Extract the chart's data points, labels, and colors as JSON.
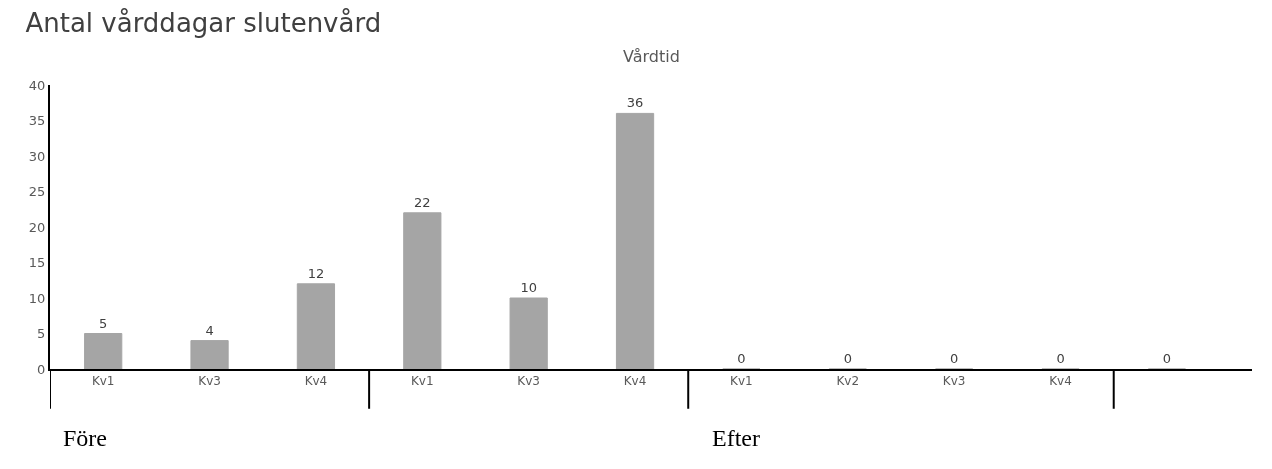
{
  "chart_data": {
    "type": "bar",
    "title": "Antal vårddagar slutenvård",
    "subtitle": "Vårdtid",
    "categories": [
      "Kv1",
      "Kv3",
      "Kv4",
      "Kv1",
      "Kv3",
      "Kv4",
      "Kv1",
      "Kv2",
      "Kv3",
      "Kv4",
      null
    ],
    "values": [
      5,
      4,
      12,
      22,
      10,
      36,
      0,
      0,
      0,
      0,
      0
    ],
    "color": "#a5a5a5",
    "ylim": [
      0,
      40
    ],
    "yticks": [
      0,
      5,
      10,
      15,
      20,
      25,
      30,
      35,
      40
    ],
    "data_labels": true,
    "annotations": [
      "Före",
      "Efter"
    ]
  }
}
